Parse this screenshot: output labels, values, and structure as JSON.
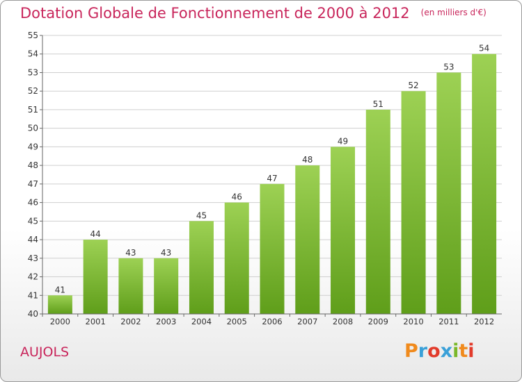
{
  "title": "Dotation Globale de Fonctionnement de 2000 à 2012",
  "unit_note": "(en milliers d'€)",
  "commune": "AUJOLS",
  "logo": {
    "text": "Proxiti",
    "colors": [
      "#f08a1c",
      "#3aa0d8",
      "#e23b2b",
      "#3aa0d8",
      "#7ab82a",
      "#f08a1c",
      "#e23b2b"
    ]
  },
  "colors": {
    "title": "#c8245a",
    "bar_top": "#9dd154",
    "bar_bottom": "#5f9e1a"
  },
  "chart_data": {
    "type": "bar",
    "categories": [
      "2000",
      "2001",
      "2002",
      "2003",
      "2004",
      "2005",
      "2006",
      "2007",
      "2008",
      "2009",
      "2010",
      "2011",
      "2012"
    ],
    "values": [
      41,
      44,
      43,
      43,
      45,
      46,
      47,
      48,
      49,
      51,
      52,
      53,
      54
    ],
    "ylim": [
      40,
      55
    ],
    "yticks": [
      40,
      41,
      42,
      43,
      44,
      45,
      46,
      47,
      48,
      49,
      50,
      51,
      52,
      53,
      54,
      55
    ],
    "grid": true,
    "xlabel": "",
    "ylabel": ""
  }
}
